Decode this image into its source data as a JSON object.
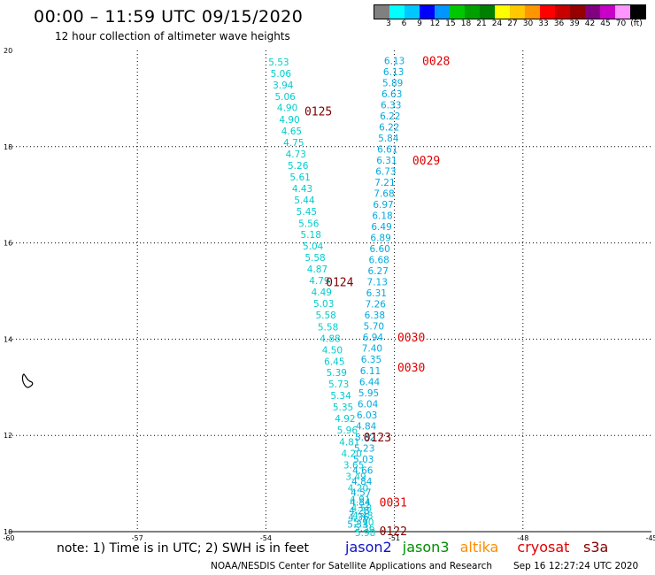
{
  "header": {
    "title": "00:00 – 11:59 UTC 09/15/2020",
    "subtitle": "12 hour collection of altimeter wave heights"
  },
  "color_scale": {
    "colors": [
      "#808080",
      "#00ffff",
      "#00c8ff",
      "#0000ff",
      "#0096ff",
      "#00c800",
      "#00a000",
      "#008000",
      "#ffff00",
      "#ffc800",
      "#ff9600",
      "#ff0000",
      "#c80000",
      "#960000",
      "#800080",
      "#c800c8",
      "#ff96ff",
      "#000000"
    ],
    "labels": [
      "3",
      "6",
      "9",
      "12",
      "15",
      "18",
      "21",
      "24",
      "27",
      "30",
      "33",
      "36",
      "39",
      "42",
      "45",
      "70",
      "(ft)"
    ]
  },
  "footer": {
    "note": "note: 1) Time is in UTC; 2) SWH is in feet",
    "legend": [
      {
        "label": "jason2",
        "color": "#1010c8"
      },
      {
        "label": "jason3",
        "color": "#008c00"
      },
      {
        "label": "altika",
        "color": "#ff8c00"
      },
      {
        "label": "cryosat",
        "color": "#e00000"
      },
      {
        "label": "s3a",
        "color": "#800000"
      }
    ],
    "credit": "NOAA/NESDIS Center for Satellite Applications and Research",
    "timestamp": "Sep 16 12:27:24 UTC 2020"
  },
  "chart_data": {
    "type": "scatter",
    "xlim": [
      -60,
      -45
    ],
    "ylim": [
      10,
      20
    ],
    "xticks": [
      -60,
      -57,
      -54,
      -51,
      -48,
      -45
    ],
    "yticks": [
      10,
      12,
      14,
      16,
      18,
      20
    ],
    "xtick_labels": [
      "-60",
      "-57",
      "-54",
      "-51",
      "-48",
      "-45"
    ],
    "ytick_labels": [
      "10",
      "12",
      "14",
      "16",
      "18",
      "20"
    ],
    "grid": true,
    "series": [
      {
        "color": "#00cccc",
        "points": [
          {
            "x": -53.7,
            "y": 19.76,
            "v": "5.53"
          },
          {
            "x": -53.65,
            "y": 19.52,
            "v": "5.06"
          },
          {
            "x": -53.6,
            "y": 19.28,
            "v": "3.94"
          },
          {
            "x": -53.55,
            "y": 19.04,
            "v": "5.06"
          },
          {
            "x": -53.5,
            "y": 18.81,
            "v": "4.90"
          },
          {
            "x": -53.45,
            "y": 18.57,
            "v": "4.90"
          },
          {
            "x": -53.4,
            "y": 18.33,
            "v": "4.65"
          },
          {
            "x": -53.35,
            "y": 18.09,
            "v": "4.75"
          },
          {
            "x": -53.3,
            "y": 17.85,
            "v": "4.73"
          },
          {
            "x": -53.25,
            "y": 17.61,
            "v": "5.26"
          },
          {
            "x": -53.2,
            "y": 17.37,
            "v": "5.61"
          },
          {
            "x": -53.15,
            "y": 17.13,
            "v": "4.43"
          },
          {
            "x": -53.1,
            "y": 16.89,
            "v": "5.44"
          },
          {
            "x": -53.05,
            "y": 16.65,
            "v": "5.45"
          },
          {
            "x": -53.0,
            "y": 16.41,
            "v": "5.56"
          },
          {
            "x": -52.95,
            "y": 16.18,
            "v": "5.18"
          },
          {
            "x": -52.9,
            "y": 15.94,
            "v": "5.04"
          },
          {
            "x": -52.85,
            "y": 15.7,
            "v": "5.58"
          },
          {
            "x": -52.8,
            "y": 15.46,
            "v": "4.87"
          },
          {
            "x": -52.75,
            "y": 15.22,
            "v": "4.79"
          },
          {
            "x": -52.7,
            "y": 14.98,
            "v": "4.49"
          },
          {
            "x": -52.65,
            "y": 14.74,
            "v": "5.03"
          },
          {
            "x": -52.6,
            "y": 14.5,
            "v": "5.58"
          },
          {
            "x": -52.55,
            "y": 14.26,
            "v": "5.58"
          },
          {
            "x": -52.5,
            "y": 14.02,
            "v": "4.88"
          },
          {
            "x": -52.45,
            "y": 13.78,
            "v": "4.50"
          },
          {
            "x": -52.4,
            "y": 13.54,
            "v": "6.45"
          },
          {
            "x": -52.35,
            "y": 13.31,
            "v": "5.39"
          },
          {
            "x": -52.3,
            "y": 13.07,
            "v": "5.73"
          },
          {
            "x": -52.25,
            "y": 12.83,
            "v": "5.34"
          },
          {
            "x": -52.2,
            "y": 12.59,
            "v": "5.35"
          },
          {
            "x": -52.15,
            "y": 12.35,
            "v": "4.92"
          },
          {
            "x": -52.1,
            "y": 12.11,
            "v": "5.96"
          },
          {
            "x": -52.05,
            "y": 11.87,
            "v": "4.81"
          },
          {
            "x": -52.0,
            "y": 11.63,
            "v": "4.20"
          },
          {
            "x": -51.95,
            "y": 11.39,
            "v": "3.65"
          },
          {
            "x": -51.9,
            "y": 11.15,
            "v": "3.49"
          },
          {
            "x": -51.85,
            "y": 10.91,
            "v": "4.20"
          },
          {
            "x": -51.8,
            "y": 10.67,
            "v": "4.91"
          },
          {
            "x": -51.77,
            "y": 10.5,
            "v": "4.58"
          },
          {
            "x": -51.74,
            "y": 10.34,
            "v": "4.48"
          },
          {
            "x": -51.72,
            "y": 10.2,
            "v": "5.90"
          },
          {
            "x": -51.7,
            "y": 10.08,
            "v": "5.36"
          },
          {
            "x": -51.68,
            "y": 9.98,
            "v": "5.98"
          }
        ]
      },
      {
        "color": "#00aadd",
        "points": [
          {
            "x": -51.0,
            "y": 19.79,
            "v": "6.13"
          },
          {
            "x": -51.02,
            "y": 19.56,
            "v": "6.13"
          },
          {
            "x": -51.04,
            "y": 19.33,
            "v": "5.89"
          },
          {
            "x": -51.06,
            "y": 19.1,
            "v": "6.63"
          },
          {
            "x": -51.08,
            "y": 18.87,
            "v": "6.33"
          },
          {
            "x": -51.1,
            "y": 18.64,
            "v": "6.22"
          },
          {
            "x": -51.12,
            "y": 18.41,
            "v": "6.22"
          },
          {
            "x": -51.14,
            "y": 18.18,
            "v": "5.84"
          },
          {
            "x": -51.16,
            "y": 17.95,
            "v": "6.61"
          },
          {
            "x": -51.18,
            "y": 17.72,
            "v": "6.31"
          },
          {
            "x": -51.2,
            "y": 17.49,
            "v": "6.73"
          },
          {
            "x": -51.22,
            "y": 17.26,
            "v": "7.21"
          },
          {
            "x": -51.24,
            "y": 17.03,
            "v": "7.68"
          },
          {
            "x": -51.26,
            "y": 16.8,
            "v": "6.97"
          },
          {
            "x": -51.28,
            "y": 16.57,
            "v": "6.18"
          },
          {
            "x": -51.3,
            "y": 16.34,
            "v": "6.49"
          },
          {
            "x": -51.32,
            "y": 16.11,
            "v": "6.89"
          },
          {
            "x": -51.34,
            "y": 15.88,
            "v": "6.60"
          },
          {
            "x": -51.36,
            "y": 15.65,
            "v": "6.68"
          },
          {
            "x": -51.38,
            "y": 15.42,
            "v": "6.27"
          },
          {
            "x": -51.4,
            "y": 15.19,
            "v": "7.13"
          },
          {
            "x": -51.42,
            "y": 14.96,
            "v": "6.31"
          },
          {
            "x": -51.44,
            "y": 14.73,
            "v": "7.26"
          },
          {
            "x": -51.46,
            "y": 14.5,
            "v": "6.38"
          },
          {
            "x": -51.48,
            "y": 14.27,
            "v": "5.70"
          },
          {
            "x": -51.5,
            "y": 14.04,
            "v": "6.94"
          },
          {
            "x": -51.52,
            "y": 13.81,
            "v": "7.40"
          },
          {
            "x": -51.54,
            "y": 13.58,
            "v": "6.35"
          },
          {
            "x": -51.56,
            "y": 13.35,
            "v": "6.11"
          },
          {
            "x": -51.58,
            "y": 13.12,
            "v": "6.44"
          },
          {
            "x": -51.6,
            "y": 12.89,
            "v": "5.95"
          },
          {
            "x": -51.62,
            "y": 12.66,
            "v": "6.04"
          },
          {
            "x": -51.64,
            "y": 12.43,
            "v": "6.03"
          },
          {
            "x": -51.66,
            "y": 12.2,
            "v": "4.84"
          },
          {
            "x": -51.68,
            "y": 11.97,
            "v": "5.82"
          },
          {
            "x": -51.7,
            "y": 11.74,
            "v": "5.23"
          },
          {
            "x": -51.72,
            "y": 11.51,
            "v": "5.03"
          },
          {
            "x": -51.74,
            "y": 11.28,
            "v": "4.66"
          },
          {
            "x": -51.76,
            "y": 11.05,
            "v": "4.84"
          },
          {
            "x": -51.78,
            "y": 10.82,
            "v": "4.57"
          },
          {
            "x": -51.8,
            "y": 10.62,
            "v": "4.84"
          },
          {
            "x": -51.82,
            "y": 10.44,
            "v": "4.28"
          },
          {
            "x": -51.84,
            "y": 10.3,
            "v": "4.36"
          },
          {
            "x": -51.86,
            "y": 10.16,
            "v": "5.33"
          }
        ]
      }
    ],
    "track_labels": [
      {
        "x": -50.35,
        "y": 19.79,
        "text": "0028",
        "color": "#e00000"
      },
      {
        "x": -53.1,
        "y": 18.74,
        "text": "0125",
        "color": "#800000"
      },
      {
        "x": -50.58,
        "y": 17.72,
        "text": "0029",
        "color": "#e00000"
      },
      {
        "x": -52.6,
        "y": 15.19,
        "text": "0124",
        "color": "#800000"
      },
      {
        "x": -50.93,
        "y": 14.04,
        "text": "0030",
        "color": "#e00000"
      },
      {
        "x": -50.93,
        "y": 13.42,
        "text": "0030",
        "color": "#e00000"
      },
      {
        "x": -51.72,
        "y": 11.97,
        "text": "0123",
        "color": "#800000"
      },
      {
        "x": -51.35,
        "y": 10.62,
        "text": "0031",
        "color": "#e00000"
      },
      {
        "x": -51.35,
        "y": 10.02,
        "text": "0122",
        "color": "#800000"
      }
    ]
  }
}
